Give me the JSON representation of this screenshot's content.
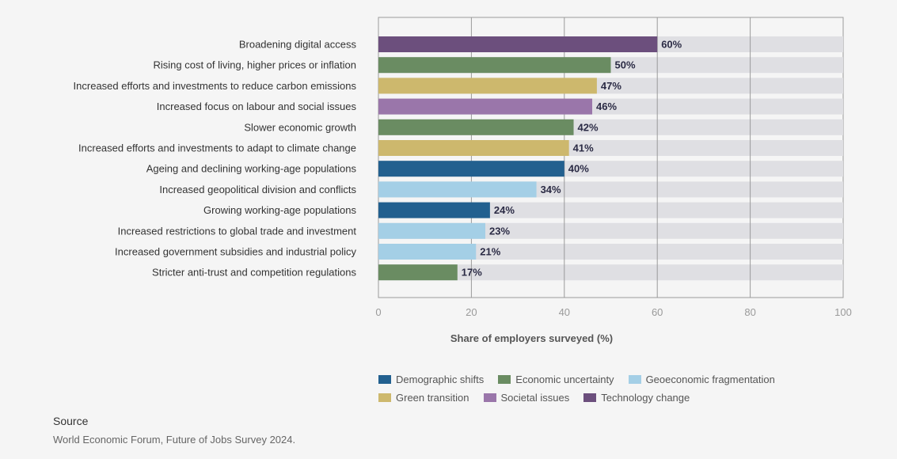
{
  "chart_data": {
    "type": "bar",
    "orientation": "horizontal",
    "categories": [
      "Broadening digital access",
      "Rising cost of living, higher prices or inflation",
      "Increased efforts and investments to reduce carbon emissions",
      "Increased focus on labour and social issues",
      "Slower economic growth",
      "Increased efforts and investments to adapt to climate change",
      "Ageing and declining working-age populations",
      "Increased geopolitical division and conflicts",
      "Growing working-age populations",
      "Increased restrictions to global trade and investment",
      "Increased government subsidies and industrial policy",
      "Stricter anti-trust and competition regulations"
    ],
    "values": [
      60,
      50,
      47,
      46,
      42,
      41,
      40,
      34,
      24,
      23,
      21,
      17
    ],
    "value_labels": [
      "60%",
      "50%",
      "47%",
      "46%",
      "42%",
      "41%",
      "40%",
      "34%",
      "24%",
      "23%",
      "21%",
      "17%"
    ],
    "groups": [
      "Technology change",
      "Economic uncertainty",
      "Green transition",
      "Societal issues",
      "Economic uncertainty",
      "Green transition",
      "Demographic shifts",
      "Geoeconomic fragmentation",
      "Demographic shifts",
      "Geoeconomic fragmentation",
      "Geoeconomic fragmentation",
      "Economic uncertainty"
    ],
    "xlabel": "Share of employers surveyed (%)",
    "xlim": [
      0,
      100
    ],
    "xticks": [
      "0",
      "20",
      "40",
      "60",
      "80",
      "100"
    ],
    "grid": true,
    "legend_placement": "bottom",
    "legend": [
      {
        "name": "Demographic shifts",
        "color": "#22608f"
      },
      {
        "name": "Economic uncertainty",
        "color": "#6a8c62"
      },
      {
        "name": "Geoeconomic fragmentation",
        "color": "#a4cfe6"
      },
      {
        "name": "Green transition",
        "color": "#cdb86d"
      },
      {
        "name": "Societal issues",
        "color": "#9a76aa"
      },
      {
        "name": "Technology change",
        "color": "#6c4f7d"
      }
    ]
  },
  "source": {
    "title": "Source",
    "text": "World Economic Forum, Future of Jobs Survey 2024."
  }
}
